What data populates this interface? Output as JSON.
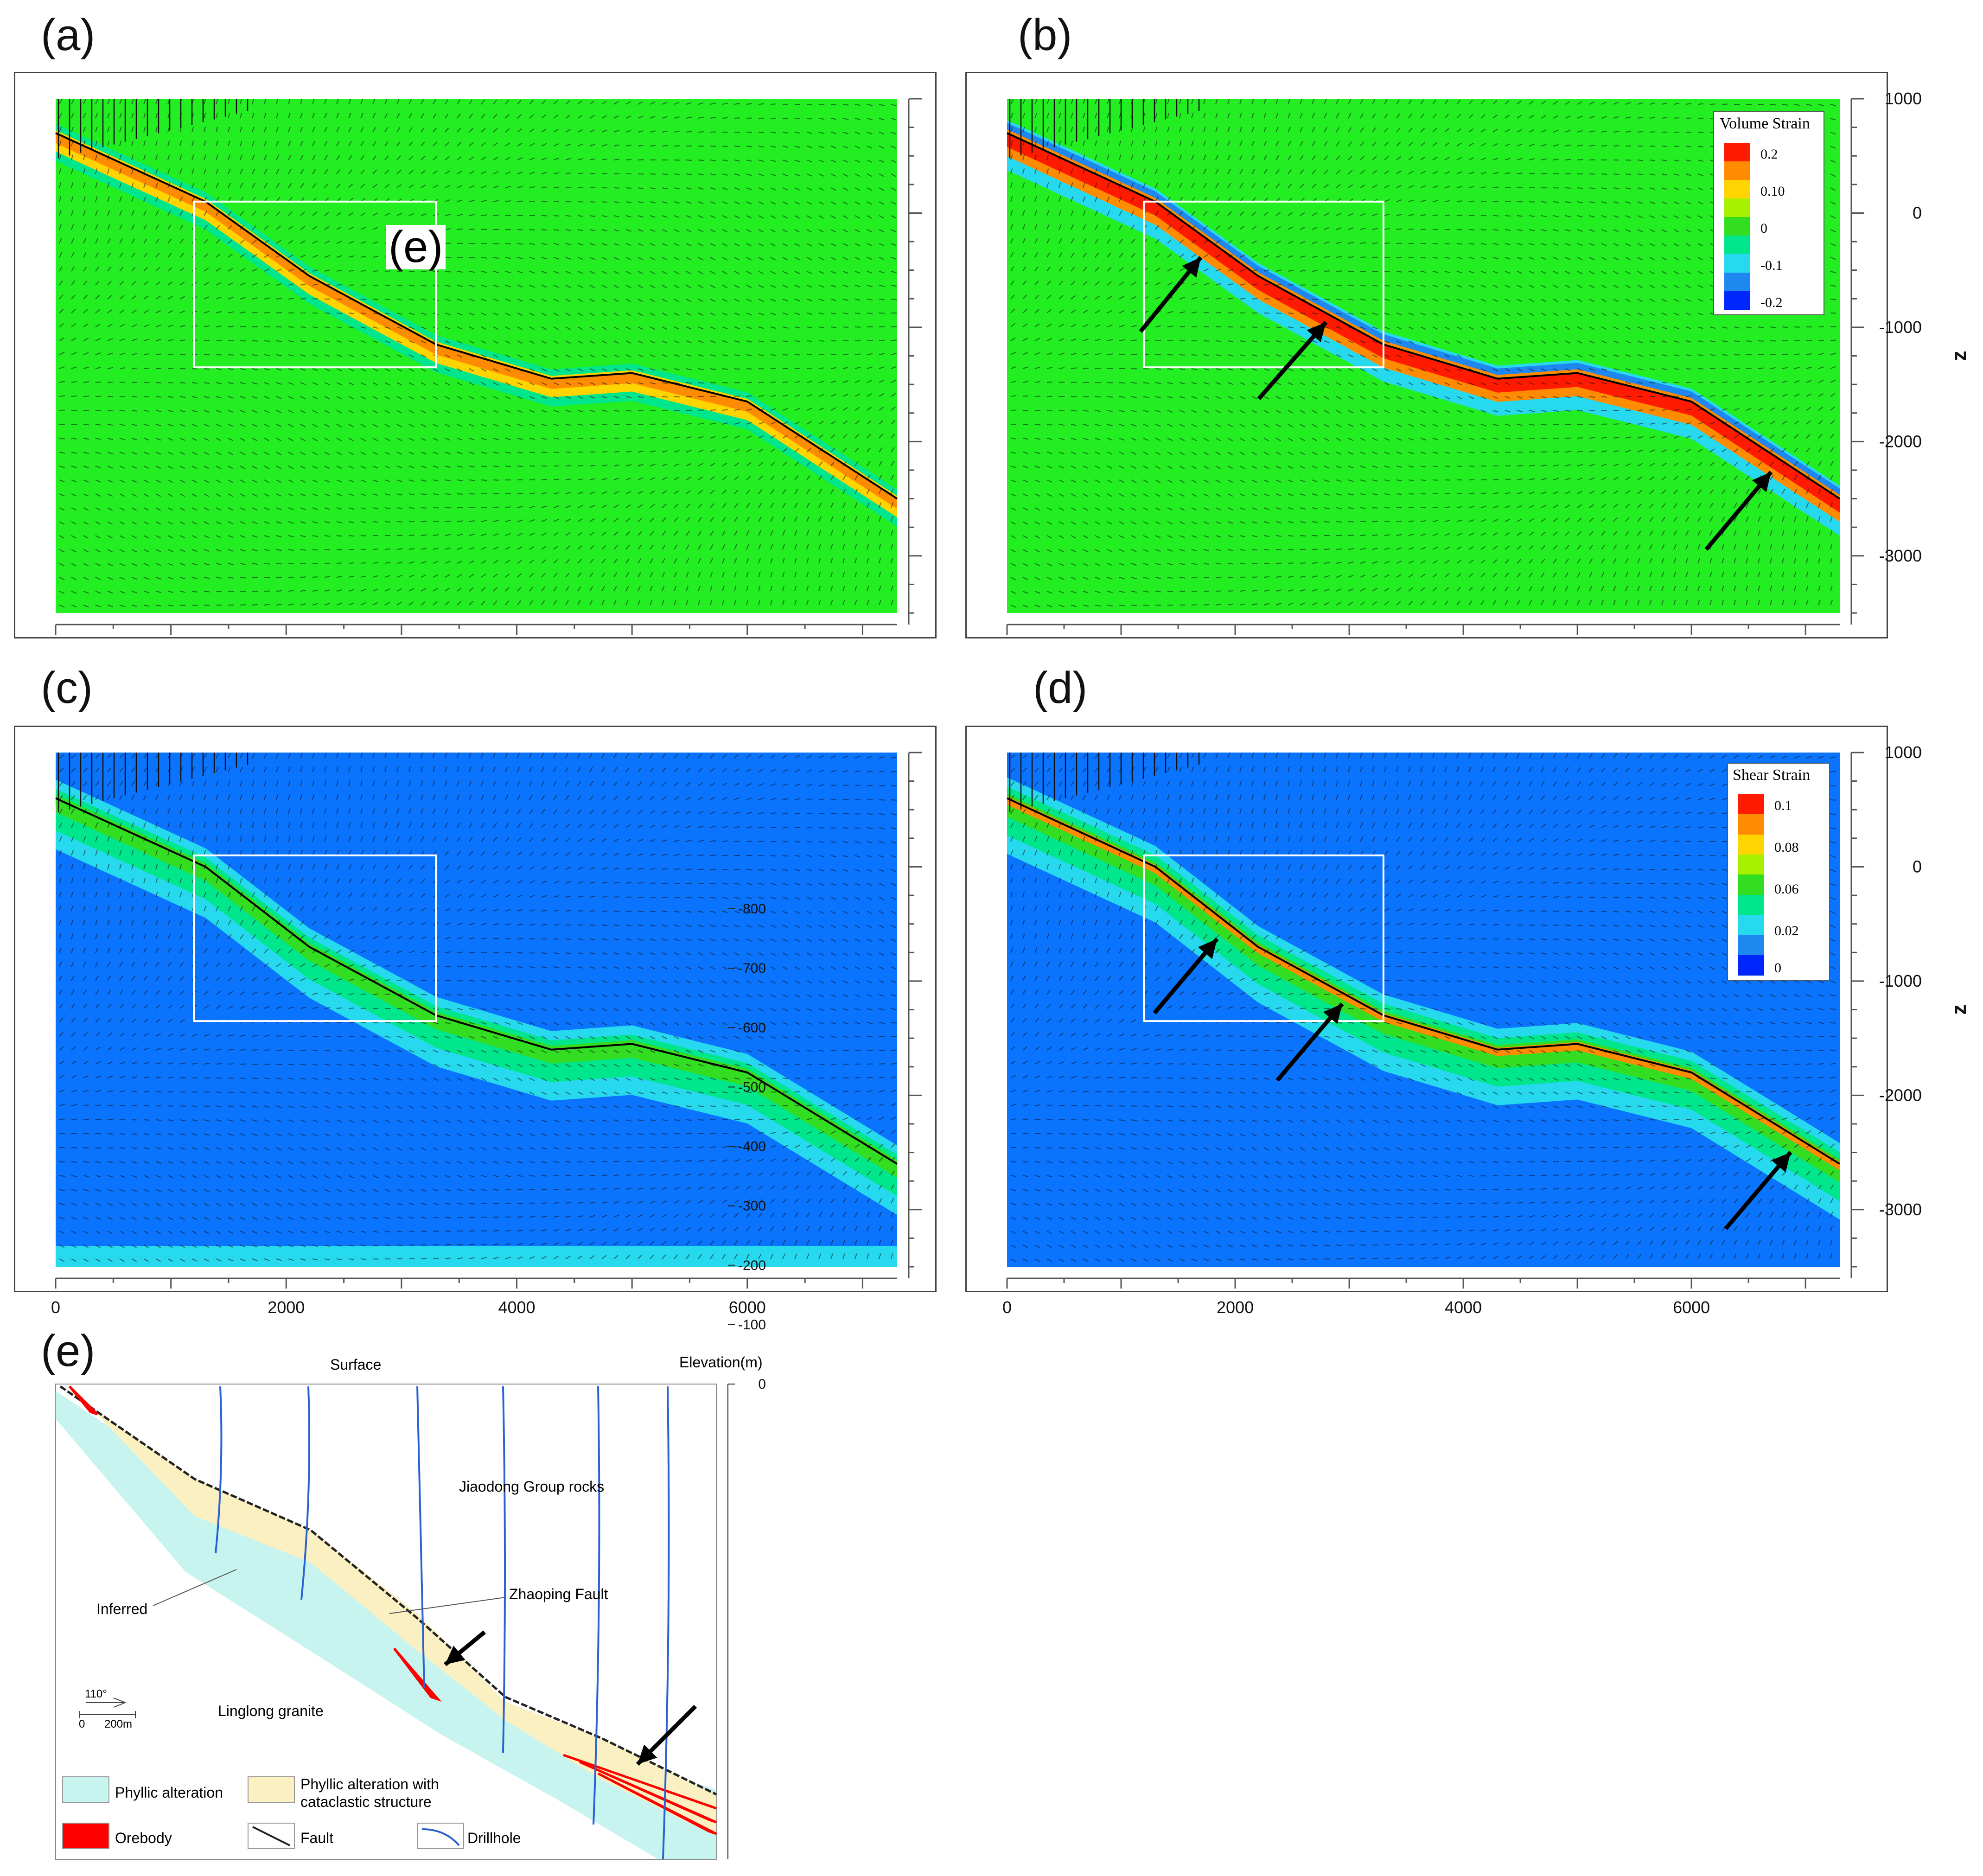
{
  "panels": {
    "a": {
      "label": "(a)",
      "inset_label": "(e)"
    },
    "b": {
      "label": "(b)"
    },
    "c": {
      "label": "(c)"
    },
    "d": {
      "label": "(d)"
    },
    "e": {
      "label": "(e)"
    }
  },
  "axes": {
    "x_ticks": [
      0,
      2000,
      4000,
      6000
    ],
    "z_ticks": [
      1000,
      0,
      -1000,
      -2000,
      -3000
    ],
    "z_label": "z",
    "x_range": [
      0,
      7300
    ],
    "z_range": [
      -3500,
      1000
    ]
  },
  "legends": {
    "volume": {
      "title": "Volume Strain",
      "labels": [
        "0.2",
        "0.10",
        "0",
        "-0.1",
        "-0.2"
      ],
      "colors": [
        "#ff1a00",
        "#ff8c00",
        "#ffd400",
        "#a6f000",
        "#33dd22",
        "#00e68c",
        "#27d9ee",
        "#1e88f0",
        "#0026ff"
      ]
    },
    "shear": {
      "title": "Shear Strain",
      "labels": [
        "0.1",
        "0.08",
        "0.06",
        "0.02",
        "0"
      ],
      "colors": [
        "#ff1a00",
        "#ff8c00",
        "#ffd400",
        "#a6f000",
        "#33dd22",
        "#00e68c",
        "#27d9ee",
        "#1e88f0",
        "#0026ff"
      ]
    }
  },
  "colors": {
    "green_field": "#22ee22",
    "blue_field": "#0a74ff",
    "fault": "#000000"
  },
  "section_e": {
    "title_surface": "Surface",
    "title_elev": "Elevation(m)",
    "elev_ticks": [
      "0",
      "-100",
      "-200",
      "-300",
      "-400",
      "-500",
      "-600",
      "-700",
      "-800"
    ],
    "labels": {
      "jiaodong": "Jiaodong Group rocks",
      "inferred": "Inferred",
      "zhaoping": "Zhaoping Fault",
      "linglong": "Linglong granite",
      "azimuth": "110°",
      "scale_0": "0",
      "scale_200": "200m"
    },
    "legend": {
      "phyllic": "Phyllic alteration",
      "phyllic_cat_1": "Phyllic alteration with",
      "phyllic_cat_2": "cataclastic structure",
      "orebody": "Orebody",
      "fault": "Fault",
      "drillhole": "Drillhole"
    },
    "colors": {
      "phyllic": "#c7f4ee",
      "cataclastic": "#fbf0c1",
      "orebody": "#ff0000",
      "drillhole": "#2a62d6"
    }
  },
  "chart_data": [
    {
      "type": "heatmap",
      "panel": "a",
      "variable": "Volume Strain",
      "x_range": [
        0,
        7300
      ],
      "z_range": [
        -3500,
        1000
      ],
      "fault_trace": {
        "x": [
          0,
          1300,
          2200,
          3300,
          4300,
          5000,
          6000,
          7300
        ],
        "z": [
          700,
          100,
          -550,
          -1150,
          -1450,
          -1400,
          -1650,
          -2500
        ]
      }
    },
    {
      "type": "heatmap",
      "panel": "b",
      "variable": "Volume Strain",
      "x_range": [
        0,
        7300
      ],
      "z_range": [
        -3500,
        1000
      ],
      "legend_levels": [
        0.2,
        0.1,
        0,
        -0.1,
        -0.2
      ],
      "fault_trace": {
        "x": [
          0,
          1300,
          2200,
          3300,
          4300,
          5000,
          6000,
          7300
        ],
        "z": [
          700,
          100,
          -550,
          -1150,
          -1450,
          -1400,
          -1650,
          -2500
        ]
      }
    },
    {
      "type": "heatmap",
      "panel": "c",
      "variable": "Shear Strain",
      "x_range": [
        0,
        7300
      ],
      "z_range": [
        -3500,
        1000
      ],
      "fault_trace": {
        "x": [
          0,
          1300,
          2200,
          3300,
          4300,
          5000,
          6000,
          7300
        ],
        "z": [
          600,
          0,
          -700,
          -1300,
          -1600,
          -1550,
          -1800,
          -2600
        ]
      }
    },
    {
      "type": "heatmap",
      "panel": "d",
      "variable": "Shear Strain",
      "x_range": [
        0,
        7300
      ],
      "z_range": [
        -3500,
        1000
      ],
      "legend_levels": [
        0.1,
        0.08,
        0.06,
        0.02,
        0
      ],
      "fault_trace": {
        "x": [
          0,
          1300,
          2200,
          3300,
          4300,
          5000,
          6000,
          7300
        ],
        "z": [
          600,
          0,
          -700,
          -1300,
          -1600,
          -1550,
          -1800,
          -2600
        ]
      }
    }
  ]
}
